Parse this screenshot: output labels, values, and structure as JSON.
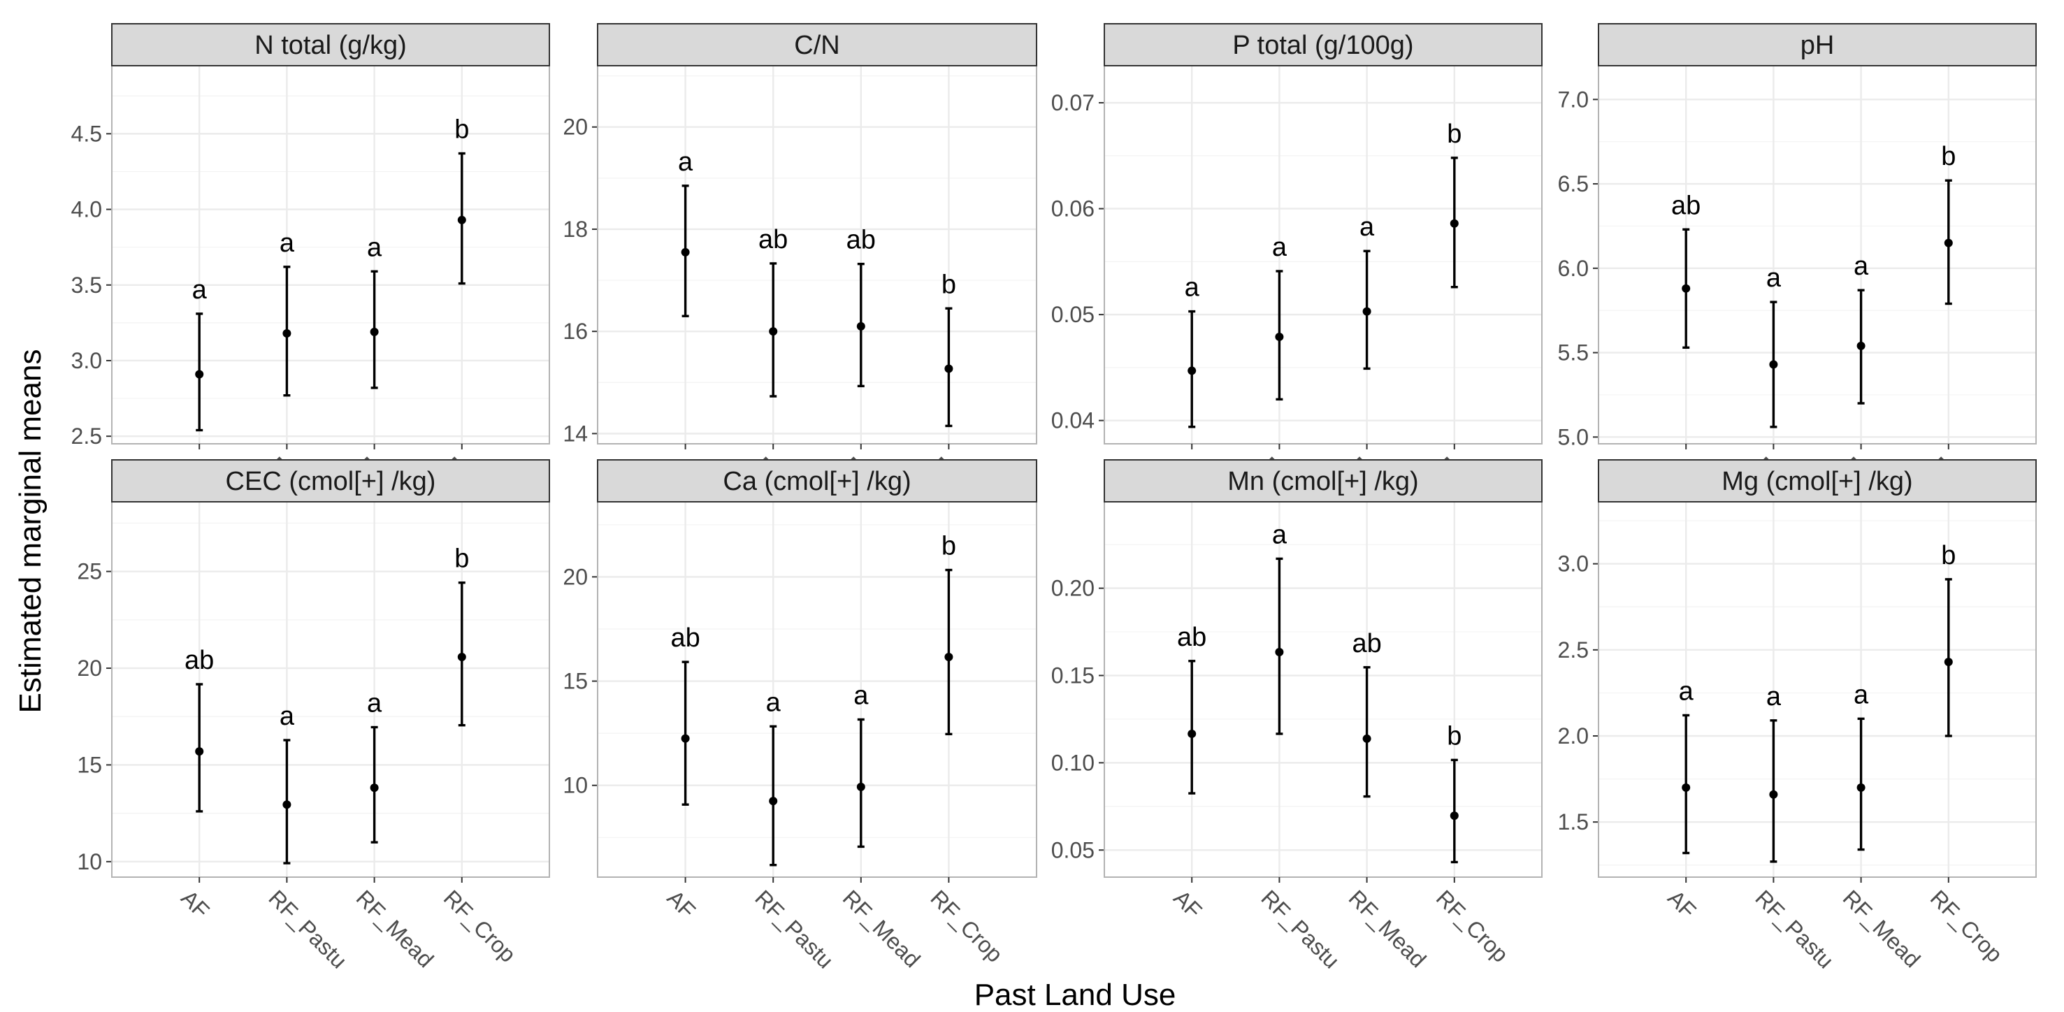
{
  "chart_data": {
    "type": "scatter",
    "layout": "facet grid, 2 rows x 4 columns, error bars",
    "xlabel": "Past Land Use",
    "ylabel": "Estimated marginal means",
    "categories": [
      "AF",
      "RF_Pastu",
      "RF_Mead",
      "RF_Crop"
    ],
    "grid": true,
    "panels": [
      {
        "title": "N total (g/kg)",
        "ylim": [
          2.45,
          4.95
        ],
        "yticks": [
          2.5,
          3.0,
          3.5,
          4.0,
          4.5
        ],
        "ytick_labels": [
          "2.5",
          "3.0",
          "3.5",
          "4.0",
          "4.5"
        ],
        "values": [
          2.91,
          3.18,
          3.19,
          3.93
        ],
        "lower": [
          2.54,
          2.77,
          2.82,
          3.51
        ],
        "upper": [
          3.31,
          3.62,
          3.59,
          4.37
        ],
        "letters": [
          "a",
          "a",
          "a",
          "b"
        ]
      },
      {
        "title": "C/N",
        "ylim": [
          13.8,
          21.2
        ],
        "yticks": [
          14,
          16,
          18,
          20
        ],
        "ytick_labels": [
          "14",
          "16",
          "18",
          "20"
        ],
        "values": [
          17.55,
          16.0,
          16.1,
          15.27
        ],
        "lower": [
          16.3,
          14.73,
          14.93,
          14.15
        ],
        "upper": [
          18.85,
          17.33,
          17.32,
          16.45
        ],
        "letters": [
          "a",
          "ab",
          "ab",
          "b"
        ]
      },
      {
        "title": "P total (g/100g)",
        "ylim": [
          0.0378,
          0.0735
        ],
        "yticks": [
          0.04,
          0.05,
          0.06,
          0.07
        ],
        "ytick_labels": [
          "0.04",
          "0.05",
          "0.06",
          "0.07"
        ],
        "values": [
          0.0447,
          0.0479,
          0.0503,
          0.0586
        ],
        "lower": [
          0.0394,
          0.042,
          0.0449,
          0.0526
        ],
        "upper": [
          0.0503,
          0.0541,
          0.056,
          0.0648
        ],
        "letters": [
          "a",
          "a",
          "a",
          "b"
        ]
      },
      {
        "title": "pH",
        "ylim": [
          4.96,
          7.2
        ],
        "yticks": [
          5.0,
          5.5,
          6.0,
          6.5,
          7.0
        ],
        "ytick_labels": [
          "5.0",
          "5.5",
          "6.0",
          "6.5",
          "7.0"
        ],
        "values": [
          5.88,
          5.43,
          5.54,
          6.15
        ],
        "lower": [
          5.53,
          5.06,
          5.2,
          5.79
        ],
        "upper": [
          6.23,
          5.8,
          5.87,
          6.52
        ],
        "letters": [
          "ab",
          "a",
          "a",
          "b"
        ]
      },
      {
        "title": "CEC (cmol[+] /kg)",
        "ylim": [
          9.2,
          28.6
        ],
        "yticks": [
          10,
          15,
          20,
          25
        ],
        "ytick_labels": [
          "10",
          "15",
          "20",
          "25"
        ],
        "values": [
          15.7,
          12.95,
          13.82,
          20.58
        ],
        "lower": [
          12.6,
          9.92,
          11.0,
          17.05
        ],
        "upper": [
          19.17,
          16.28,
          16.95,
          24.42
        ],
        "letters": [
          "ab",
          "a",
          "a",
          "b"
        ]
      },
      {
        "title": "Ca (cmol[+] /kg)",
        "ylim": [
          5.6,
          23.6
        ],
        "yticks": [
          10,
          15,
          20
        ],
        "ytick_labels": [
          "10",
          "15",
          "20"
        ],
        "values": [
          12.25,
          9.25,
          9.93,
          16.16
        ],
        "lower": [
          9.08,
          6.18,
          7.06,
          12.46
        ],
        "upper": [
          15.92,
          12.83,
          13.16,
          20.33
        ],
        "letters": [
          "ab",
          "a",
          "a",
          "b"
        ]
      },
      {
        "title": "Mn (cmol[+] /kg)",
        "ylim": [
          0.0345,
          0.2495
        ],
        "yticks": [
          0.05,
          0.1,
          0.15,
          0.2
        ],
        "ytick_labels": [
          "0.05",
          "0.10",
          "0.15",
          "0.20"
        ],
        "values": [
          0.1166,
          0.1634,
          0.1138,
          0.0697
        ],
        "lower": [
          0.0825,
          0.1166,
          0.0807,
          0.0431
        ],
        "upper": [
          0.1583,
          0.2169,
          0.1547,
          0.1016
        ],
        "letters": [
          "ab",
          "a",
          "ab",
          "b"
        ]
      },
      {
        "title": "Mg (cmol[+] /kg)",
        "ylim": [
          1.18,
          3.36
        ],
        "yticks": [
          1.5,
          2.0,
          2.5,
          3.0
        ],
        "ytick_labels": [
          "1.5",
          "2.0",
          "2.5",
          "3.0"
        ],
        "values": [
          1.7,
          1.66,
          1.7,
          2.43
        ],
        "lower": [
          1.32,
          1.27,
          1.34,
          2.0
        ],
        "upper": [
          2.12,
          2.09,
          2.1,
          2.91
        ],
        "letters": [
          "a",
          "a",
          "a",
          "b"
        ]
      }
    ]
  }
}
